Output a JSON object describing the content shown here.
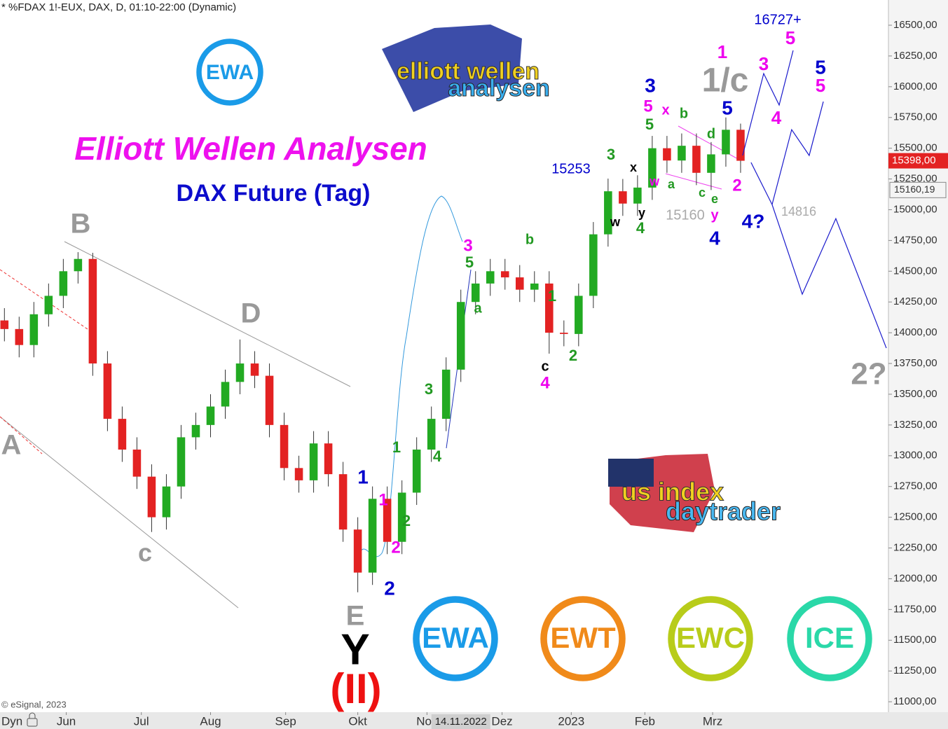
{
  "chart_data": {
    "type": "candlestick",
    "header": "* %FDAX 1!-EUX, DAX, D, 01:10-22:00 (Dynamic)",
    "title": "Elliott Wellen Analysen",
    "subtitle": "DAX Future (Tag)",
    "source": "© eSignal, 2023",
    "mode_label": "Dyn",
    "up_color": "#22aa22",
    "down_color": "#e32222",
    "x": [
      0,
      1,
      2,
      3,
      4,
      5,
      6,
      7,
      8,
      9,
      10,
      11,
      12,
      13,
      14,
      15,
      16,
      17,
      18,
      19,
      20,
      21,
      22,
      23,
      24,
      25,
      26,
      27,
      28,
      29,
      30,
      31,
      32,
      33,
      34,
      35,
      36,
      37,
      38,
      39,
      40,
      41,
      42,
      43,
      44,
      45,
      46,
      47,
      48,
      49,
      50
    ],
    "open": [
      14100,
      14030,
      13900,
      14150,
      14300,
      14500,
      14600,
      13750,
      13300,
      13050,
      12830,
      12500,
      12750,
      13150,
      13250,
      13400,
      13600,
      13750,
      13650,
      13250,
      12900,
      12800,
      13100,
      12850,
      12400,
      12050,
      12650,
      12300,
      12700,
      13050,
      13300,
      13700,
      14250,
      14400,
      14500,
      14450,
      14350,
      14400,
      14000,
      13990,
      14300,
      14800,
      15150,
      15050,
      15180,
      15500,
      15400,
      15520,
      15300,
      15450,
      15650
    ],
    "high": [
      14200,
      14130,
      14250,
      14400,
      14600,
      14655,
      14650,
      13850,
      13400,
      13150,
      12930,
      12850,
      13250,
      13350,
      13500,
      13700,
      13945,
      13850,
      13750,
      13350,
      13000,
      13200,
      13200,
      12950,
      12500,
      12750,
      12750,
      12800,
      13150,
      13400,
      13800,
      14350,
      14500,
      14600,
      14600,
      14550,
      14500,
      14500,
      14100,
      14400,
      14900,
      15253,
      15250,
      15280,
      15600,
      15600,
      15620,
      15620,
      15550,
      15750,
      15700
    ],
    "low": [
      13930,
      13800,
      13800,
      14050,
      14200,
      14400,
      13650,
      13200,
      12950,
      12730,
      12380,
      12400,
      12650,
      13050,
      13150,
      13300,
      13500,
      13550,
      13150,
      12800,
      12700,
      12700,
      12750,
      12300,
      11890,
      11950,
      12200,
      12200,
      12600,
      12950,
      13200,
      13600,
      14150,
      14300,
      14350,
      14250,
      14250,
      13830,
      13890,
      13890,
      14200,
      14700,
      14950,
      14950,
      15080,
      15300,
      15300,
      15200,
      15160,
      15350,
      15300
    ],
    "close": [
      14030,
      13900,
      14150,
      14300,
      14500,
      14600,
      13750,
      13300,
      13050,
      12830,
      12500,
      12750,
      13150,
      13250,
      13400,
      13600,
      13750,
      13650,
      13250,
      12900,
      12800,
      13100,
      12850,
      12400,
      12050,
      12650,
      12300,
      12700,
      13050,
      13300,
      13700,
      14250,
      14400,
      14500,
      14450,
      14350,
      14400,
      14000,
      13990,
      14300,
      14800,
      15150,
      15050,
      15180,
      15500,
      15400,
      15520,
      15300,
      15450,
      15650,
      15398
    ],
    "xlim": [
      -0.3,
      59.9
    ],
    "xticks": [
      {
        "value": 4.2,
        "label": "Jun"
      },
      {
        "value": 9.3,
        "label": "Jul"
      },
      {
        "value": 14.0,
        "label": "Aug"
      },
      {
        "value": 19.1,
        "label": "Sep"
      },
      {
        "value": 24.0,
        "label": "Okt"
      },
      {
        "value": 28.7,
        "label": "Nov"
      },
      {
        "value": 33.8,
        "label": "Dez"
      },
      {
        "value": 38.5,
        "label": "2023"
      },
      {
        "value": 43.5,
        "label": "Feb"
      },
      {
        "value": 48.1,
        "label": "Mrz"
      }
    ],
    "ylim": [
      10915,
      16705
    ],
    "yticks": [
      {
        "value": 16500,
        "label": "16500,00"
      },
      {
        "value": 16250,
        "label": "16250,00"
      },
      {
        "value": 16000,
        "label": "16000,00"
      },
      {
        "value": 15750,
        "label": "15750,00"
      },
      {
        "value": 15500,
        "label": "15500,00"
      },
      {
        "value": 15250,
        "label": "15250,00"
      },
      {
        "value": 15000,
        "label": "15000,00"
      },
      {
        "value": 14750,
        "label": "14750,00"
      },
      {
        "value": 14500,
        "label": "14500,00"
      },
      {
        "value": 14250,
        "label": "14250,00"
      },
      {
        "value": 14000,
        "label": "14000,00"
      },
      {
        "value": 13750,
        "label": "13750,00"
      },
      {
        "value": 13500,
        "label": "13500,00"
      },
      {
        "value": 13250,
        "label": "13250,00"
      },
      {
        "value": 13000,
        "label": "13000,00"
      },
      {
        "value": 12750,
        "label": "12750,00"
      },
      {
        "value": 12500,
        "label": "12500,00"
      },
      {
        "value": 12250,
        "label": "12250,00"
      },
      {
        "value": 12000,
        "label": "12000,00"
      },
      {
        "value": 11750,
        "label": "11750,00"
      },
      {
        "value": 11500,
        "label": "11500,00"
      },
      {
        "value": 11250,
        "label": "11250,00"
      },
      {
        "value": 11000,
        "label": "11000,00"
      }
    ],
    "last_price": {
      "value": 15398,
      "label": "15398,00"
    },
    "crosshair": {
      "value": 15160.19,
      "label": "15160,19",
      "x": 31.0,
      "date": "14.11.2022"
    },
    "projections": [
      {
        "color": "#1a1acc",
        "x": [
          50.14,
          51.57,
          52.62,
          53.57
        ],
        "y": [
          15441,
          16107,
          15851,
          16295
        ]
      },
      {
        "color": "#1a1acc",
        "x": [
          50.71,
          52.14,
          53.47,
          54.66,
          55.62
        ],
        "y": [
          15384,
          15042,
          15651,
          15441,
          15879
        ]
      },
      {
        "color": "#1a1acc",
        "x": [
          52.14,
          54.19,
          56.47,
          59.9
        ],
        "y": [
          15042,
          14313,
          14928,
          13875
        ]
      }
    ],
    "annotations": [
      {
        "text": "B",
        "color": "#999999"
      },
      {
        "text": "D",
        "color": "#999999"
      },
      {
        "text": "A",
        "color": "#999999"
      },
      {
        "text": "c",
        "color": "#999999"
      },
      {
        "text": "E",
        "color": "#999999"
      },
      {
        "text": "1/c",
        "color": "#999999"
      },
      {
        "text": "15160",
        "color": "#aaaaaa"
      },
      {
        "text": "14816",
        "color": "#aaaaaa"
      },
      {
        "text": "2?",
        "color": "#999999"
      },
      {
        "text": "Y",
        "color": "#000000"
      },
      {
        "text": "(II)",
        "color": "#ee1111"
      },
      {
        "text": "1",
        "color": "#0000cc"
      },
      {
        "text": "2",
        "color": "#0000cc"
      },
      {
        "text": "3",
        "color": "#0000cc"
      },
      {
        "text": "5",
        "color": "#0000cc"
      },
      {
        "text": "4",
        "color": "#0000cc"
      },
      {
        "text": "4?",
        "color": "#0000cc"
      },
      {
        "text": "5",
        "color": "#0000cc"
      },
      {
        "text": "15253",
        "color": "#0000cc"
      },
      {
        "text": "16727+",
        "color": "#0000cc"
      },
      {
        "text": "1",
        "color": "#ee00ee"
      },
      {
        "text": "2",
        "color": "#ee00ee"
      },
      {
        "text": "3",
        "color": "#ee00ee"
      },
      {
        "text": "4",
        "color": "#ee00ee"
      },
      {
        "text": "5",
        "color": "#ee00ee"
      },
      {
        "text": "x",
        "color": "#ee00ee"
      },
      {
        "text": "w",
        "color": "#ee00ee"
      },
      {
        "text": "y",
        "color": "#ee00ee"
      },
      {
        "text": "2",
        "color": "#ee00ee"
      },
      {
        "text": "1",
        "color": "#ee00ee"
      },
      {
        "text": "3",
        "color": "#ee00ee"
      },
      {
        "text": "5",
        "color": "#ee00ee"
      },
      {
        "text": "4",
        "color": "#ee00ee"
      },
      {
        "text": "5",
        "color": "#ee00ee"
      },
      {
        "text": "1",
        "color": "#229922"
      },
      {
        "text": "2",
        "color": "#229922"
      },
      {
        "text": "3",
        "color": "#229922"
      },
      {
        "text": "4",
        "color": "#229922"
      },
      {
        "text": "5",
        "color": "#229922"
      },
      {
        "text": "a",
        "color": "#229922"
      },
      {
        "text": "b",
        "color": "#229922"
      },
      {
        "text": "1",
        "color": "#229922"
      },
      {
        "text": "2",
        "color": "#229922"
      },
      {
        "text": "3",
        "color": "#229922"
      },
      {
        "text": "5",
        "color": "#229922"
      },
      {
        "text": "4",
        "color": "#229922"
      },
      {
        "text": "a",
        "color": "#229922"
      },
      {
        "text": "b",
        "color": "#229922"
      },
      {
        "text": "c",
        "color": "#229922"
      },
      {
        "text": "d",
        "color": "#229922"
      },
      {
        "text": "e",
        "color": "#229922"
      },
      {
        "text": "c",
        "color": "#000000"
      },
      {
        "text": "x",
        "color": "#000000"
      },
      {
        "text": "w",
        "color": "#000000"
      },
      {
        "text": "y",
        "color": "#000000"
      }
    ],
    "logos": [
      {
        "text": "EWA",
        "color": "#1a9be8"
      },
      {
        "text": "EWA",
        "color": "#1a9be8"
      },
      {
        "text": "EWT",
        "color": "#f08a1a"
      },
      {
        "text": "EWC",
        "color": "#b8cc1a"
      },
      {
        "text": "ICE",
        "color": "#2ad8a8"
      }
    ],
    "brand_logos": [
      "elliott wellen",
      "analysen",
      "us index",
      "daytrader"
    ]
  }
}
